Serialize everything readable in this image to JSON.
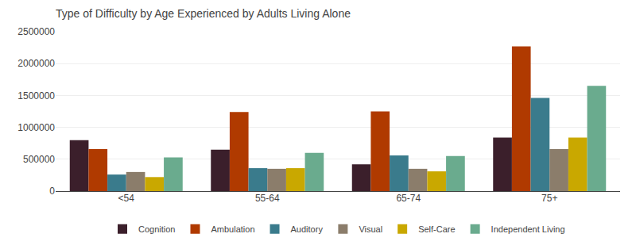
{
  "chart_data": {
    "type": "bar",
    "title": "Type of Difficulty by Age Experienced by Adults Living Alone",
    "categories": [
      "<54",
      "55-64",
      "65-74",
      "75+"
    ],
    "series": [
      {
        "name": "Cognition",
        "color": "#3b1f2b",
        "values": [
          800000,
          650000,
          420000,
          840000
        ]
      },
      {
        "name": "Ambulation",
        "color": "#b03a00",
        "values": [
          660000,
          1240000,
          1250000,
          2270000
        ]
      },
      {
        "name": "Auditory",
        "color": "#3a7b8c",
        "values": [
          260000,
          360000,
          560000,
          1460000
        ]
      },
      {
        "name": "Visual",
        "color": "#8b7d6b",
        "values": [
          300000,
          350000,
          350000,
          660000
        ]
      },
      {
        "name": "Self-Care",
        "color": "#c9a800",
        "values": [
          220000,
          360000,
          310000,
          840000
        ]
      },
      {
        "name": "Independent Living",
        "color": "#6aab8e",
        "values": [
          530000,
          600000,
          550000,
          1650000
        ]
      }
    ],
    "ylim": [
      0,
      2500000
    ],
    "yticks": [
      0,
      500000,
      1000000,
      1500000,
      2000000,
      2500000
    ],
    "grid": true,
    "legend": "bottom"
  }
}
